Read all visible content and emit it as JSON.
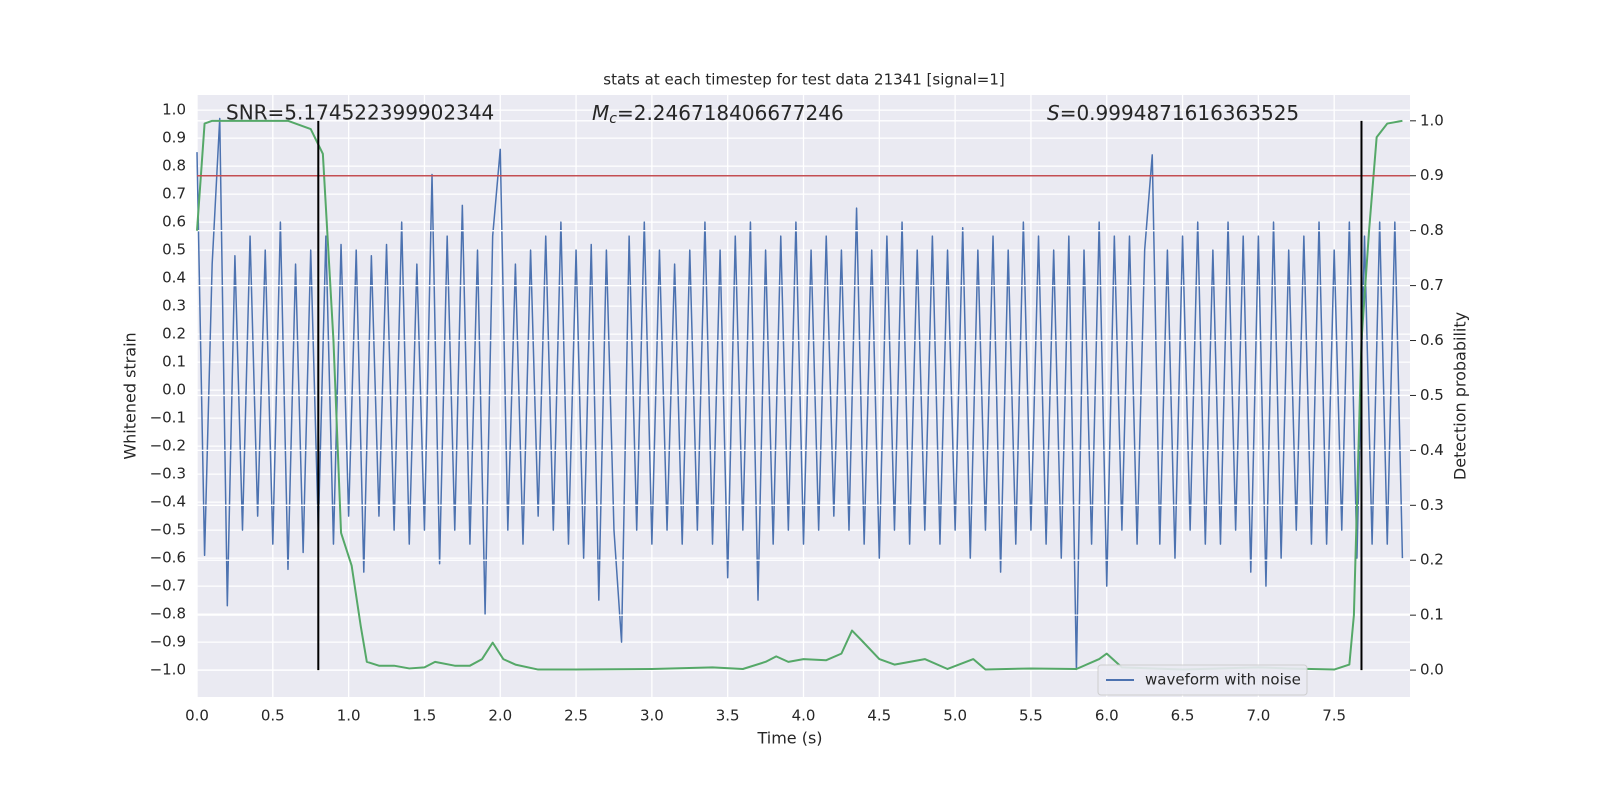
{
  "chart_data": {
    "type": "line",
    "title": "stats at each timestep for test data 21341 [signal=1]",
    "xlabel": "Time (s)",
    "ylabel": "Whitened strain",
    "y2label": "Detection probability",
    "annotations": [
      {
        "text": "SNR=5.174522399902344"
      },
      {
        "symbol": "M",
        "subscript": "c",
        "text": "=2.246718406677246"
      },
      {
        "symbol": "S",
        "text": "=0.9994871616363525"
      }
    ],
    "xlim": [
      0,
      8.0
    ],
    "ylim": [
      -1.096,
      1.054
    ],
    "y2lim": [
      -0.049,
      1.047
    ],
    "xticks": [
      {
        "value": 0,
        "label": "0.0"
      },
      0.5,
      {
        "value": 1,
        "label": "1.0"
      },
      1.5,
      {
        "value": 2,
        "label": "2.0"
      },
      2.5,
      {
        "value": 3,
        "label": "3.0"
      },
      3.5,
      {
        "value": 4,
        "label": "4.0"
      },
      4.5,
      {
        "value": 5,
        "label": "5.0"
      },
      5.5,
      {
        "value": 6,
        "label": "6.0"
      },
      6.5,
      {
        "value": 7,
        "label": "7.0"
      },
      7.5
    ],
    "yticks": [
      {
        "value": -1,
        "label": "−1.0"
      },
      {
        "value": -0.9,
        "label": "−0.9"
      },
      {
        "value": -0.8,
        "label": "−0.8"
      },
      {
        "value": -0.7,
        "label": "−0.7"
      },
      {
        "value": -0.6,
        "label": "−0.6"
      },
      {
        "value": -0.5,
        "label": "−0.5"
      },
      {
        "value": -0.4,
        "label": "−0.4"
      },
      {
        "value": -0.3,
        "label": "−0.3"
      },
      {
        "value": -0.2,
        "label": "−0.2"
      },
      {
        "value": -0.1,
        "label": "−0.1"
      },
      {
        "value": 0,
        "label": "0.0"
      },
      0.1,
      0.2,
      0.3,
      0.4,
      0.5,
      0.6,
      0.7,
      0.8,
      0.9,
      {
        "value": 1,
        "label": "1.0"
      }
    ],
    "y2ticks": [
      {
        "value": 0,
        "label": "0.0"
      },
      0.1,
      0.2,
      0.3,
      0.4,
      0.5,
      0.6,
      0.7,
      0.8,
      0.9,
      {
        "value": 1,
        "label": "1.0"
      }
    ],
    "grid": true,
    "legend": "lower right",
    "series": [
      {
        "name": "waveform with noise",
        "color": "#4c72b0",
        "x": [
          0,
          0.05,
          0.1,
          0.15,
          0.2,
          0.25,
          0.3,
          0.35,
          0.4,
          0.45,
          0.5,
          0.55,
          0.6,
          0.65,
          0.7,
          0.75,
          0.8,
          0.85,
          0.9,
          0.95,
          1,
          1.05,
          1.1,
          1.15,
          1.2,
          1.25,
          1.3,
          1.35,
          1.4,
          1.45,
          1.5,
          1.55,
          1.6,
          1.65,
          1.7,
          1.75,
          1.8,
          1.85,
          1.9,
          1.95,
          2,
          2.05,
          2.1,
          2.15,
          2.2,
          2.25,
          2.3,
          2.35,
          2.4,
          2.45,
          2.5,
          2.55,
          2.6,
          2.65,
          2.7,
          2.75,
          2.8,
          2.85,
          2.9,
          2.95,
          3,
          3.05,
          3.1,
          3.15,
          3.2,
          3.25,
          3.3,
          3.35,
          3.4,
          3.45,
          3.5,
          3.55,
          3.6,
          3.65,
          3.7,
          3.75,
          3.8,
          3.85,
          3.9,
          3.95,
          4,
          4.05,
          4.1,
          4.15,
          4.2,
          4.25,
          4.3,
          4.35,
          4.4,
          4.45,
          4.5,
          4.55,
          4.6,
          4.65,
          4.7,
          4.75,
          4.8,
          4.85,
          4.9,
          4.95,
          5,
          5.05,
          5.1,
          5.15,
          5.2,
          5.25,
          5.3,
          5.35,
          5.4,
          5.45,
          5.5,
          5.55,
          5.6,
          5.65,
          5.7,
          5.75,
          5.8,
          5.85,
          5.9,
          5.95,
          6,
          6.05,
          6.1,
          6.15,
          6.2,
          6.25,
          6.3,
          6.35,
          6.4,
          6.45,
          6.5,
          6.55,
          6.6,
          6.65,
          6.7,
          6.75,
          6.8,
          6.85,
          6.9,
          6.95,
          7,
          7.05,
          7.1,
          7.15,
          7.2,
          7.25,
          7.3,
          7.35,
          7.4,
          7.45,
          7.5,
          7.55,
          7.6,
          7.65,
          7.7,
          7.75,
          7.8,
          7.85,
          7.9,
          7.95
        ],
        "values": [
          0.85,
          -0.59,
          0.45,
          0.97,
          -0.77,
          0.48,
          -0.5,
          0.55,
          -0.45,
          0.5,
          -0.55,
          0.6,
          -0.64,
          0.45,
          -0.58,
          0.5,
          -0.5,
          0.55,
          -0.55,
          0.52,
          -0.45,
          0.5,
          -0.65,
          0.48,
          -0.45,
          0.52,
          -0.5,
          0.6,
          -0.55,
          0.45,
          -0.5,
          0.77,
          -0.62,
          0.55,
          -0.5,
          0.66,
          -0.55,
          0.5,
          -0.8,
          0.55,
          0.86,
          -0.5,
          0.45,
          -0.55,
          0.5,
          -0.45,
          0.55,
          -0.5,
          0.6,
          -0.55,
          0.5,
          -0.6,
          0.52,
          -0.75,
          0.5,
          -0.5,
          -0.9,
          0.55,
          -0.5,
          0.6,
          -0.55,
          0.5,
          -0.5,
          0.45,
          -0.55,
          0.5,
          -0.5,
          0.6,
          -0.55,
          0.5,
          -0.67,
          0.55,
          -0.5,
          0.6,
          -0.75,
          0.5,
          -0.55,
          0.55,
          -0.5,
          0.6,
          -0.55,
          0.5,
          -0.5,
          0.55,
          -0.45,
          0.5,
          -0.5,
          0.65,
          -0.55,
          0.5,
          -0.6,
          0.55,
          -0.5,
          0.6,
          -0.55,
          0.5,
          -0.5,
          0.55,
          -0.55,
          0.5,
          -0.5,
          0.58,
          -0.6,
          0.5,
          -0.5,
          0.55,
          -0.65,
          0.5,
          -0.55,
          0.6,
          -0.5,
          0.55,
          -0.55,
          0.5,
          -0.6,
          0.55,
          -1.0,
          0.5,
          -0.55,
          0.6,
          -0.7,
          0.55,
          -0.5,
          0.55,
          -0.55,
          0.5,
          0.84,
          -0.55,
          0.5,
          -0.6,
          0.55,
          -0.5,
          0.6,
          -0.55,
          0.5,
          -0.55,
          0.6,
          -0.5,
          0.55,
          -0.65,
          0.55,
          -0.7,
          0.6,
          -0.6,
          0.5,
          -0.5,
          0.55,
          -0.55,
          0.6,
          -0.55,
          0.5,
          -0.5,
          0.6,
          -0.6,
          0.55,
          -0.55,
          0.6,
          -0.55,
          0.6,
          -0.6
        ]
      },
      {
        "color": "#55a868",
        "axis": "y2",
        "x": [
          0,
          0.05,
          0.1,
          0.6,
          0.7,
          0.75,
          0.83,
          0.9,
          0.95,
          1.02,
          1.08,
          1.12,
          1.2,
          1.3,
          1.4,
          1.5,
          1.57,
          1.7,
          1.8,
          1.88,
          1.95,
          2.02,
          2.1,
          2.25,
          2.5,
          3.0,
          3.4,
          3.6,
          3.75,
          3.82,
          3.9,
          4.0,
          4.15,
          4.25,
          4.32,
          4.38,
          4.5,
          4.6,
          4.8,
          4.95,
          5.12,
          5.2,
          5.5,
          5.8,
          5.95,
          6.0,
          6.1,
          6.5,
          7.0,
          7.2,
          7.5,
          7.6,
          7.63,
          7.68,
          7.73,
          7.78,
          7.85,
          7.95
        ],
        "values": [
          0.8,
          0.995,
          1.0,
          1.0,
          0.99,
          0.985,
          0.94,
          0.6,
          0.25,
          0.19,
          0.08,
          0.015,
          0.008,
          0.008,
          0.003,
          0.005,
          0.015,
          0.008,
          0.008,
          0.02,
          0.05,
          0.02,
          0.01,
          0.001,
          0.001,
          0.002,
          0.005,
          0.002,
          0.015,
          0.025,
          0.015,
          0.02,
          0.018,
          0.03,
          0.072,
          0.055,
          0.02,
          0.01,
          0.02,
          0.002,
          0.02,
          0.001,
          0.003,
          0.002,
          0.02,
          0.03,
          0.005,
          0.001,
          0.005,
          0.003,
          0.001,
          0.01,
          0.1,
          0.6,
          0.8,
          0.97,
          0.995,
          1.0
        ]
      }
    ],
    "hlines": [
      {
        "value": 0.9,
        "axis": "y2",
        "color": "#c44e52"
      }
    ],
    "vlines": {
      "x": [
        0.8,
        7.68
      ],
      "y2range": [
        0,
        1
      ],
      "color": "#000000"
    }
  }
}
